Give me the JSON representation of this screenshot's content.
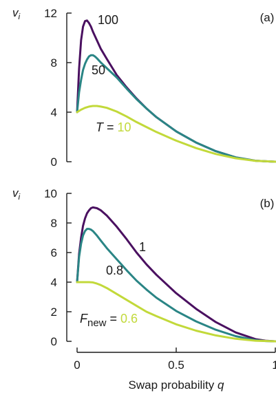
{
  "chart_data": [
    {
      "type": "line",
      "panel_label": "(a)",
      "ylabel": "v_i",
      "ylabel_main": "v",
      "ylabel_sub": "i",
      "ylim": [
        0,
        12
      ],
      "yticks": [
        "0",
        "4",
        "8",
        "12"
      ],
      "ytick_values": [
        0,
        4,
        8,
        12
      ],
      "xlim": [
        0,
        1
      ],
      "x_note": "shares x axis with panel (b)",
      "legend_prefix_main": "T",
      "legend_prefix_sub": "",
      "legend_eq": "=",
      "series": [
        {
          "name": "100",
          "color": "#4a1060",
          "x": [
            0.0,
            0.01,
            0.02,
            0.03,
            0.04,
            0.05,
            0.06,
            0.07,
            0.08,
            0.1,
            0.12,
            0.15,
            0.2,
            0.25,
            0.3,
            0.35,
            0.4,
            0.5,
            0.6,
            0.7,
            0.8,
            0.9,
            1.0
          ],
          "values": [
            4.0,
            7.5,
            9.8,
            10.9,
            11.35,
            11.4,
            11.2,
            10.9,
            10.5,
            9.8,
            9.1,
            8.3,
            7.0,
            6.0,
            5.1,
            4.3,
            3.6,
            2.45,
            1.55,
            0.85,
            0.35,
            0.08,
            0.0
          ]
        },
        {
          "name": "50",
          "color": "#2a8585",
          "x": [
            0.0,
            0.01,
            0.02,
            0.03,
            0.04,
            0.05,
            0.06,
            0.07,
            0.08,
            0.09,
            0.1,
            0.12,
            0.15,
            0.2,
            0.25,
            0.3,
            0.35,
            0.4,
            0.5,
            0.6,
            0.7,
            0.8,
            0.9,
            1.0
          ],
          "values": [
            4.0,
            5.6,
            6.6,
            7.4,
            7.9,
            8.25,
            8.5,
            8.6,
            8.6,
            8.5,
            8.35,
            8.0,
            7.55,
            6.8,
            5.9,
            5.05,
            4.3,
            3.6,
            2.45,
            1.55,
            0.85,
            0.35,
            0.08,
            0.0
          ]
        },
        {
          "name": "10",
          "color": "#c2d93a",
          "x": [
            0.0,
            0.02,
            0.04,
            0.06,
            0.08,
            0.1,
            0.12,
            0.15,
            0.2,
            0.25,
            0.3,
            0.35,
            0.4,
            0.5,
            0.6,
            0.7,
            0.8,
            0.9,
            1.0
          ],
          "values": [
            4.0,
            4.2,
            4.35,
            4.45,
            4.5,
            4.5,
            4.45,
            4.35,
            4.05,
            3.65,
            3.2,
            2.8,
            2.4,
            1.7,
            1.1,
            0.62,
            0.28,
            0.07,
            0.0
          ]
        }
      ]
    },
    {
      "type": "line",
      "panel_label": "(b)",
      "ylabel": "v_i",
      "ylabel_main": "v",
      "ylabel_sub": "i",
      "ylim": [
        0,
        10
      ],
      "yticks": [
        "0",
        "2",
        "4",
        "6",
        "8",
        "10"
      ],
      "ytick_values": [
        0,
        2,
        4,
        6,
        8,
        10
      ],
      "xlim": [
        0,
        1
      ],
      "xticks": [
        "0",
        "0.5",
        "1"
      ],
      "xtick_values": [
        0,
        0.5,
        1
      ],
      "xlabel_main": "Swap probability ",
      "xlabel_var": "q",
      "legend_prefix_main": "F",
      "legend_prefix_sub": "new",
      "legend_eq": "=",
      "series": [
        {
          "name": "1",
          "color": "#4a1060",
          "x": [
            0.0,
            0.01,
            0.02,
            0.03,
            0.04,
            0.05,
            0.06,
            0.07,
            0.08,
            0.1,
            0.12,
            0.15,
            0.2,
            0.25,
            0.3,
            0.35,
            0.4,
            0.5,
            0.6,
            0.7,
            0.8,
            0.9,
            0.95,
            1.0
          ],
          "values": [
            4.0,
            5.9,
            7.0,
            7.8,
            8.3,
            8.65,
            8.85,
            9.0,
            9.05,
            9.0,
            8.85,
            8.5,
            7.75,
            6.9,
            6.0,
            5.2,
            4.5,
            3.25,
            2.2,
            1.3,
            0.6,
            0.15,
            0.04,
            0.0
          ]
        },
        {
          "name": "0.8",
          "color": "#2a8585",
          "x": [
            0.0,
            0.01,
            0.02,
            0.03,
            0.04,
            0.05,
            0.06,
            0.07,
            0.08,
            0.1,
            0.12,
            0.15,
            0.2,
            0.25,
            0.3,
            0.35,
            0.4,
            0.5,
            0.6,
            0.7,
            0.8,
            0.9,
            0.95,
            1.0
          ],
          "values": [
            4.0,
            5.7,
            6.6,
            7.15,
            7.45,
            7.6,
            7.6,
            7.55,
            7.45,
            7.15,
            6.8,
            6.3,
            5.55,
            4.8,
            4.1,
            3.5,
            2.95,
            2.05,
            1.35,
            0.78,
            0.35,
            0.08,
            0.02,
            0.0
          ]
        },
        {
          "name": "0.6",
          "color": "#c2d93a",
          "x": [
            0.0,
            0.02,
            0.04,
            0.06,
            0.08,
            0.1,
            0.12,
            0.15,
            0.2,
            0.25,
            0.3,
            0.35,
            0.4,
            0.5,
            0.6,
            0.7,
            0.8,
            0.9,
            1.0
          ],
          "values": [
            4.0,
            4.0,
            4.0,
            4.0,
            3.98,
            3.9,
            3.8,
            3.6,
            3.2,
            2.8,
            2.4,
            2.0,
            1.7,
            1.15,
            0.72,
            0.4,
            0.17,
            0.04,
            0.0
          ]
        }
      ]
    }
  ]
}
